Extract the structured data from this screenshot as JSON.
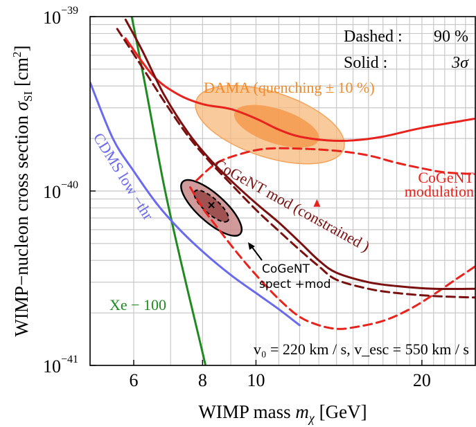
{
  "chart_data": {
    "type": "line",
    "x_scale": "log",
    "y_scale": "log",
    "xlim": [
      5.0,
      25.0
    ],
    "ylim": [
      1e-41,
      1e-39
    ],
    "x_ticks": [
      6,
      8,
      10,
      20
    ],
    "x_tick_labels": [
      "6",
      "8",
      "10",
      "20"
    ],
    "y_ticks": [
      1e-41,
      1e-40,
      1e-39
    ],
    "y_tick_labels": [
      {
        "base": "10",
        "exp": "−41"
      },
      {
        "base": "10",
        "exp": "−40"
      },
      {
        "base": "10",
        "exp": "−39"
      }
    ],
    "xlabel": {
      "main": "WIMP mass ",
      "sym": "m",
      "sub": "χ",
      "unit": " [GeV]"
    },
    "ylabel": {
      "main": "WIMP−nucleon cross section ",
      "sym": "σ",
      "sub": "SI",
      "unit": " [cm",
      "sup": "2",
      "close": "]"
    },
    "grid": true,
    "legend": {
      "dashed_label": "Dashed :",
      "dashed_value": "90 %",
      "solid_label": "Solid :",
      "solid_value": "3σ"
    },
    "annotations": {
      "dama": "DAMA  (quenching  ± 10 %)",
      "cdms": "CDMS  low −thr",
      "xe": "Xe − 100",
      "cogent_mod_1": "CoGeNT",
      "cogent_mod_2": "modulation",
      "cogent_constrained": "CoGeNT    mod  (constrained )",
      "cogent_spect_1": "CoGeNT",
      "cogent_spect_2": "spect +mod",
      "params": "v₀ = 220  km / s, v_esc = 550  km / s"
    },
    "series": [
      {
        "name": "Xe − 100",
        "style": "solid",
        "color": "#1f8a1f",
        "points": [
          [
            5.95,
            1e-39
          ],
          [
            6.3,
            4e-40
          ],
          [
            6.8,
            1.1e-40
          ],
          [
            7.3,
            4e-41
          ],
          [
            7.9,
            1.4e-41
          ],
          [
            8.1,
            1e-41
          ]
        ]
      },
      {
        "name": "CDMS  low −thr",
        "style": "solid",
        "color": "#6a6af0",
        "points": [
          [
            5.0,
            4.2e-40
          ],
          [
            5.5,
            2e-40
          ],
          [
            6.0,
            1.3e-40
          ],
          [
            6.6,
            8.5e-41
          ],
          [
            7.2,
            6.2e-41
          ],
          [
            8.0,
            4.5e-41
          ],
          [
            9.0,
            3.3e-41
          ],
          [
            10.0,
            2.6e-41
          ],
          [
            11.0,
            2.1e-41
          ],
          [
            12.0,
            1.7e-41
          ]
        ]
      },
      {
        "name": "DAMA 3σ",
        "style": "solid",
        "color": "#e8231d",
        "points": [
          [
            5.8,
            7.5e-40
          ],
          [
            6.5,
            4.6e-40
          ],
          [
            7.2,
            3.6e-40
          ],
          [
            8.0,
            3.15e-40
          ],
          [
            9.0,
            2.95e-40
          ],
          [
            10.0,
            2.6e-40
          ],
          [
            11.0,
            2.25e-40
          ],
          [
            12.0,
            2.05e-40
          ],
          [
            13.5,
            1.95e-40
          ],
          [
            15.0,
            1.95e-40
          ],
          [
            17.0,
            2.05e-40
          ],
          [
            20.0,
            2.3e-40
          ],
          [
            25.0,
            2.6e-40
          ]
        ]
      },
      {
        "name": "CoGeNT modulation 90%",
        "style": "dashed",
        "color": "#e8231d",
        "points": [
          [
            7.8,
            1.15e-40
          ],
          [
            8.5,
            1.45e-40
          ],
          [
            9.5,
            1.65e-40
          ],
          [
            10.5,
            1.75e-40
          ],
          [
            12.0,
            1.75e-40
          ],
          [
            14.0,
            1.7e-40
          ],
          [
            16.0,
            1.6e-40
          ],
          [
            18.0,
            1.45e-40
          ],
          [
            20.0,
            1.35e-40
          ],
          [
            22.0,
            1.28e-40
          ],
          [
            25.0,
            1.25e-40
          ]
        ]
      },
      {
        "name": "CoGeNT modulation 90% (lower)",
        "style": "dashed",
        "color": "#e8231d",
        "points": [
          [
            7.6,
            1.05e-40
          ],
          [
            8.0,
            8e-41
          ],
          [
            8.5,
            6.2e-41
          ],
          [
            9.2,
            4.5e-41
          ],
          [
            10.0,
            3.3e-41
          ],
          [
            11.0,
            2.4e-41
          ],
          [
            12.0,
            1.9e-41
          ],
          [
            13.0,
            1.7e-41
          ],
          [
            14.0,
            1.62e-41
          ],
          [
            15.0,
            1.65e-41
          ],
          [
            17.0,
            1.8e-41
          ],
          [
            19.0,
            2.1e-41
          ],
          [
            21.0,
            2.55e-41
          ],
          [
            23.0,
            3.1e-41
          ],
          [
            25.0,
            3.7e-41
          ]
        ]
      },
      {
        "name": "CoGeNT mod (constrained) 3σ",
        "style": "solid",
        "color": "#7a1010",
        "points": [
          [
            5.8,
            9.6e-40
          ],
          [
            6.2,
            6.5e-40
          ],
          [
            6.8,
            3.6e-40
          ],
          [
            7.5,
            2.2e-40
          ],
          [
            8.2,
            1.55e-40
          ],
          [
            9.0,
            1.15e-40
          ],
          [
            10.0,
            8.5e-41
          ],
          [
            11.0,
            6.6e-41
          ],
          [
            12.0,
            5.1e-41
          ],
          [
            13.0,
            4e-41
          ],
          [
            14.0,
            3.4e-41
          ],
          [
            16.0,
            3e-41
          ],
          [
            18.0,
            2.85e-41
          ],
          [
            21.0,
            2.75e-41
          ],
          [
            25.0,
            2.75e-41
          ]
        ]
      },
      {
        "name": "CoGeNT mod (constrained) 90%",
        "style": "dashed",
        "color": "#7a1010",
        "points": [
          [
            5.6,
            8.5e-40
          ],
          [
            6.2,
            5.2e-40
          ],
          [
            6.8,
            3.3e-40
          ],
          [
            7.5,
            2.1e-40
          ],
          [
            8.2,
            1.5e-40
          ],
          [
            9.0,
            1.1e-40
          ],
          [
            10.0,
            7.8e-41
          ],
          [
            11.0,
            5.9e-41
          ],
          [
            12.0,
            4.6e-41
          ],
          [
            13.0,
            3.7e-41
          ],
          [
            14.0,
            3.1e-41
          ],
          [
            16.0,
            2.75e-41
          ],
          [
            18.0,
            2.6e-41
          ],
          [
            21.0,
            2.5e-41
          ],
          [
            25.0,
            2.45e-41
          ]
        ]
      }
    ],
    "regions": [
      {
        "name": "DAMA (quenching ± 10%) 3σ",
        "color": "#f7b87a",
        "center": [
          10.6,
          2.4e-40
        ],
        "level": "3σ"
      },
      {
        "name": "DAMA (quenching ± 10%) 90%",
        "color": "#f59a4e",
        "center": [
          10.9,
          2.35e-40
        ],
        "level": "90%"
      },
      {
        "name": "CoGeNT spect + mod 3σ",
        "color": "#c98a8a",
        "center": [
          8.3,
          8e-41
        ],
        "level": "3σ"
      },
      {
        "name": "CoGeNT spect + mod 90%",
        "color": "#9a4a4a",
        "center": [
          8.3,
          8.2e-41
        ],
        "level": "90%"
      }
    ],
    "markers": [
      {
        "name": "best fit CoGeNT modulation",
        "shape": "triangle",
        "color": "#e8231d",
        "x": 12.9,
        "y": 8.5e-41
      },
      {
        "name": "best fit CoGeNT spect + mod",
        "shape": "cross",
        "color": "#000000",
        "x": 8.3,
        "y": 8.3e-41
      }
    ]
  }
}
